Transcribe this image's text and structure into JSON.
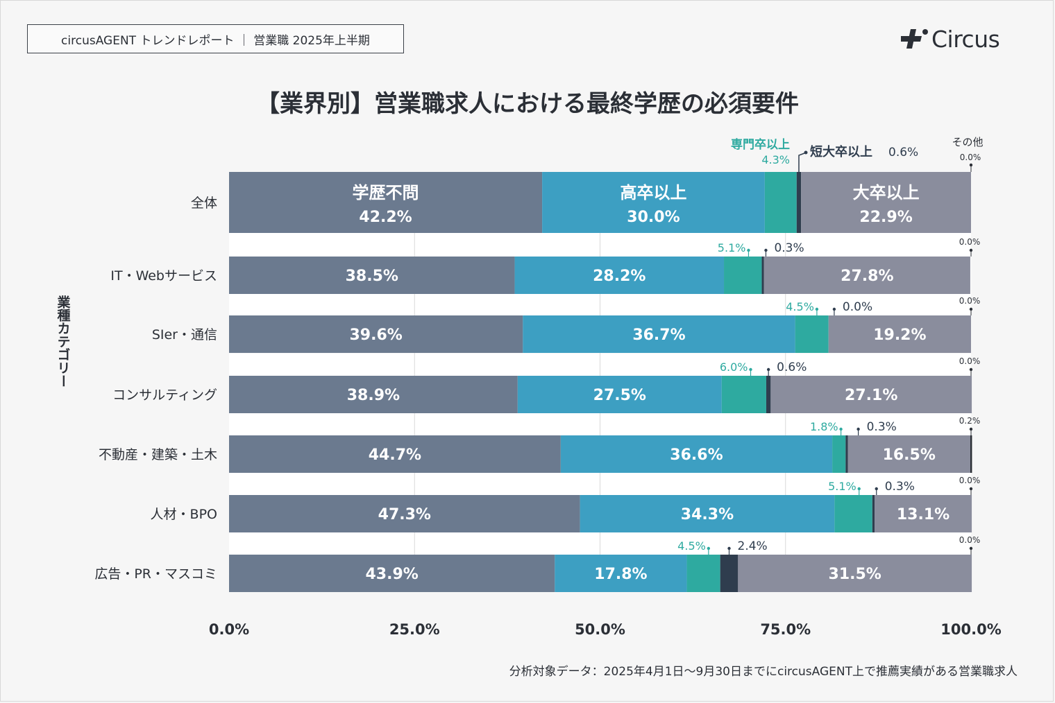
{
  "header": {
    "report_label": "circusAGENT トレンドレポート ｜ 営業職 2025年上半期",
    "logo_text": "Circus"
  },
  "footnote": "分析対象データ：2025年4月1日〜9月30日までにcircusAGENT上で推薦実績がある営業職求人",
  "chart_data": {
    "type": "bar",
    "orientation": "horizontal-stacked-100",
    "title": "【業界別】営業職求人における最終学歴の必須要件",
    "ylabel": "業種カテゴリー",
    "xlabel": "",
    "xlim": [
      0,
      100
    ],
    "xticks": [
      "0.0%",
      "25.0%",
      "50.0%",
      "75.0%",
      "100.0%"
    ],
    "categories": [
      "全体",
      "IT・Webサービス",
      "SIer・通信",
      "コンサルティング",
      "不動産・建築・土木",
      "人材・BPO",
      "広告・PR・マスコミ"
    ],
    "series": [
      {
        "name": "学歴不問",
        "color": "#6b7a8f",
        "values": [
          42.2,
          38.5,
          39.6,
          38.9,
          44.7,
          47.3,
          43.9
        ],
        "labels": [
          "42.2%",
          "38.5%",
          "39.6%",
          "38.9%",
          "44.7%",
          "47.3%",
          "43.9%"
        ]
      },
      {
        "name": "高卒以上",
        "color": "#3d9fc2",
        "values": [
          30.0,
          28.2,
          36.7,
          27.5,
          36.6,
          34.3,
          17.8
        ],
        "labels": [
          "30.0%",
          "28.2%",
          "36.7%",
          "27.5%",
          "36.6%",
          "34.3%",
          "17.8%"
        ]
      },
      {
        "name": "専門卒以上",
        "color": "#2eaaa0",
        "values": [
          4.3,
          5.1,
          4.5,
          6.0,
          1.8,
          5.1,
          4.5
        ],
        "labels": [
          "4.3%",
          "5.1%",
          "4.5%",
          "6.0%",
          "1.8%",
          "5.1%",
          "4.5%"
        ]
      },
      {
        "name": "短大卒以上",
        "color": "#2f3d4e",
        "values": [
          0.6,
          0.3,
          0.0,
          0.6,
          0.3,
          0.3,
          2.4
        ],
        "labels": [
          "0.6%",
          "0.3%",
          "0.0%",
          "0.6%",
          "0.3%",
          "0.3%",
          "2.4%"
        ]
      },
      {
        "name": "大卒以上",
        "color": "#8a8d9d",
        "values": [
          22.9,
          27.8,
          19.2,
          27.1,
          16.5,
          13.1,
          31.5
        ],
        "labels": [
          "22.9%",
          "27.8%",
          "19.2%",
          "27.1%",
          "16.5%",
          "13.1%",
          "31.5%"
        ]
      },
      {
        "name": "その他",
        "color": "#2b2f36",
        "values": [
          0.0,
          0.0,
          0.0,
          0.0,
          0.2,
          0.0,
          0.0
        ],
        "labels": [
          "0.0%",
          "0.0%",
          "0.0%",
          "0.0%",
          "0.2%",
          "0.0%",
          "0.0%"
        ]
      }
    ]
  }
}
